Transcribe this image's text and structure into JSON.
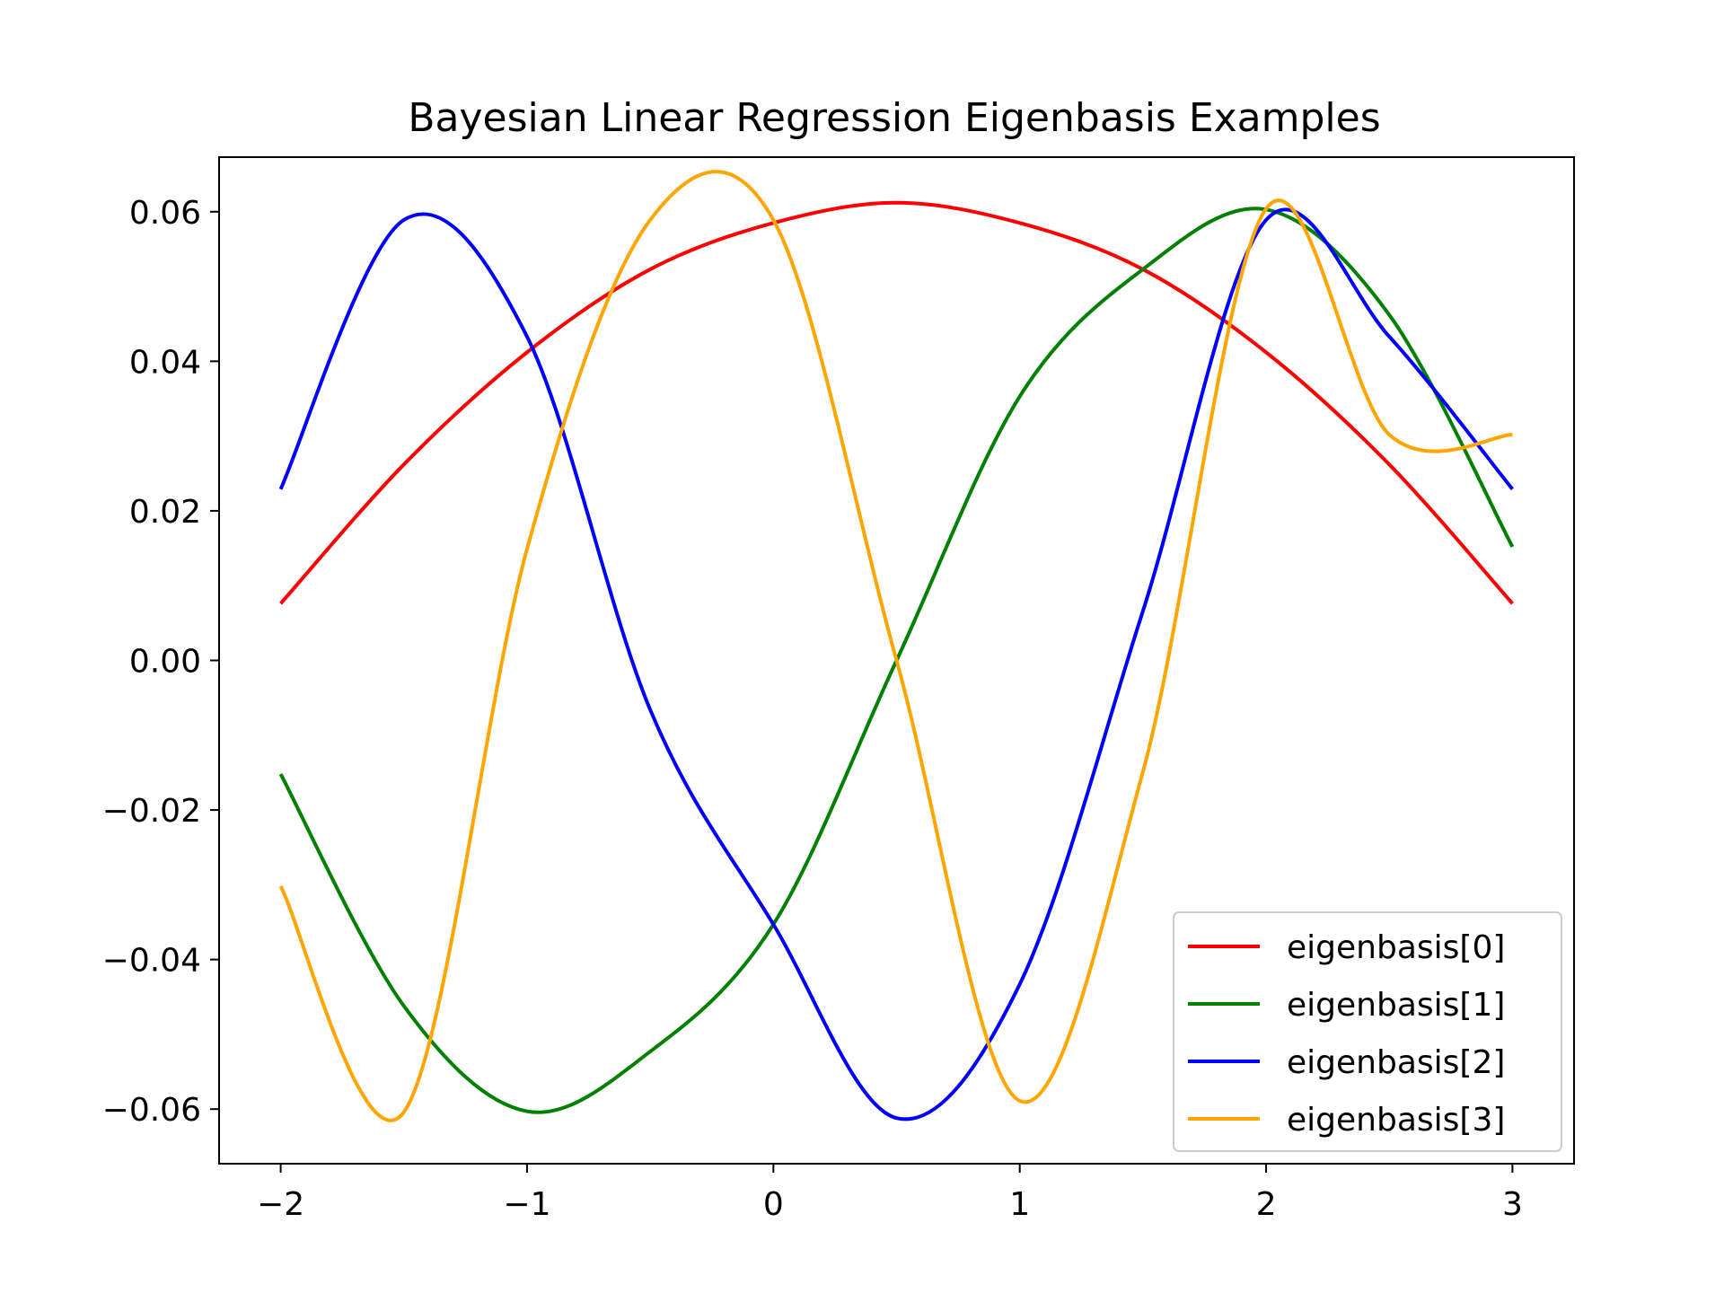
{
  "chart_data": {
    "type": "line",
    "title": "Bayesian Linear Regression Eigenbasis Examples",
    "xlabel": "",
    "ylabel": "",
    "xlim": [
      -2.25,
      3.25
    ],
    "ylim": [
      -0.0673,
      0.0673
    ],
    "x_ticks": [
      -2,
      -1,
      0,
      1,
      2,
      3
    ],
    "x_tick_labels": [
      "−2",
      "−1",
      "0",
      "1",
      "2",
      "3"
    ],
    "y_ticks": [
      -0.06,
      -0.04,
      -0.02,
      0.0,
      0.02,
      0.04,
      0.06
    ],
    "y_tick_labels": [
      "−0.06",
      "−0.04",
      "−0.02",
      "0.00",
      "0.02",
      "0.04",
      "0.06"
    ],
    "grid": false,
    "legend_position": "lower-right",
    "x": [
      -2.0,
      -1.5,
      -1.0,
      -0.5,
      0.0,
      0.5,
      1.0,
      1.5,
      2.0,
      2.5,
      3.0
    ],
    "series": [
      {
        "name": "eigenbasis[0]",
        "color": "#ff0000",
        "values": [
          0.0076,
          0.0262,
          0.0412,
          0.0523,
          0.0585,
          0.0612,
          0.0585,
          0.0523,
          0.0412,
          0.0262,
          0.0076
        ]
      },
      {
        "name": "eigenbasis[1]",
        "color": "#008000",
        "values": [
          -0.0152,
          -0.0462,
          -0.0603,
          -0.0523,
          -0.0353,
          0.0,
          0.0353,
          0.0523,
          0.0603,
          0.0462,
          0.0152
        ]
      },
      {
        "name": "eigenbasis[2]",
        "color": "#0000ff",
        "values": [
          0.0229,
          0.0589,
          0.0433,
          -0.0066,
          -0.0353,
          -0.0612,
          -0.0433,
          0.0066,
          0.0589,
          0.0433,
          0.0229
        ]
      },
      {
        "name": "eigenbasis[3]",
        "color": "#ffa500",
        "values": [
          -0.0302,
          -0.0604,
          0.0149,
          0.0589,
          0.0589,
          0.0,
          -0.0589,
          -0.0149,
          0.0604,
          0.0302,
          0.0302
        ]
      }
    ]
  }
}
